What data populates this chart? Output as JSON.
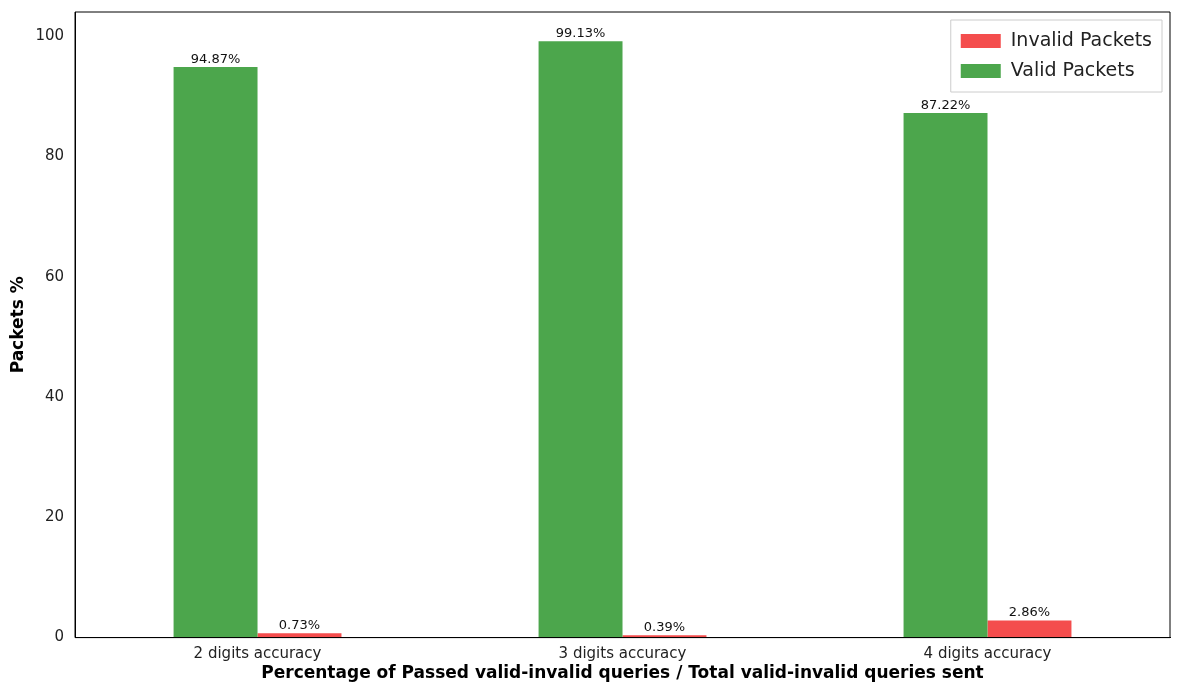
{
  "chart_data": {
    "type": "bar",
    "xlabel": "Percentage of Passed valid-invalid queries / Total valid-invalid queries sent",
    "ylabel": "Packets %",
    "categories": [
      "2 digits accuracy",
      "3 digits accuracy",
      "4 digits accuracy"
    ],
    "series": [
      {
        "name": "Valid Packets",
        "color": "#4ca64c",
        "values": [
          94.87,
          99.13,
          87.22
        ],
        "value_labels": [
          "94.87%",
          "99.13%",
          "87.22%"
        ]
      },
      {
        "name": "Invalid Packets",
        "color": "#f44d4d",
        "values": [
          0.73,
          0.39,
          2.86
        ],
        "value_labels": [
          "0.73%",
          "0.39%",
          "2.86%"
        ]
      }
    ],
    "ylim": [
      0,
      104
    ],
    "yticks": [
      0,
      20,
      40,
      60,
      80,
      100
    ],
    "grid": false,
    "legend": "top right"
  }
}
